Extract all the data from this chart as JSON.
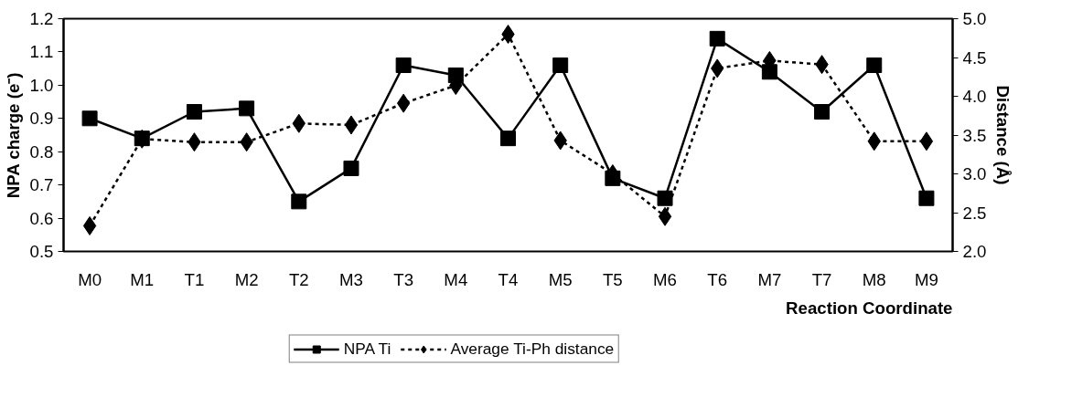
{
  "chart_data": {
    "type": "line",
    "xlabel": "Reaction Coordinate",
    "ylabel": "NPA charge (e⁻)",
    "y2label": "Distance (Å)",
    "categories": [
      "M0",
      "M1",
      "T1",
      "M2",
      "T2",
      "M3",
      "T3",
      "M4",
      "T4",
      "M5",
      "T5",
      "M6",
      "T6",
      "M7",
      "T7",
      "M8",
      "M9"
    ],
    "series": [
      {
        "name": "NPA Ti",
        "color": "#000000",
        "marker": "square",
        "line_style": "solid",
        "values": [
          0.9,
          0.84,
          0.92,
          0.93,
          0.65,
          0.75,
          1.06,
          1.03,
          0.84,
          1.06,
          0.72,
          0.66,
          1.14,
          1.04,
          0.92,
          1.06,
          0.66
        ]
      },
      {
        "name": "Average Ti-Ph distance",
        "color": "#000000",
        "marker": "diamond",
        "line_style": "dashed",
        "axis": "y2",
        "values": [
          2.33,
          3.45,
          3.41,
          3.41,
          3.65,
          3.63,
          3.91,
          4.14,
          4.8,
          3.43,
          3.0,
          2.45,
          4.36,
          4.46,
          4.41,
          3.42,
          3.42
        ]
      }
    ],
    "ylim": [
      0.5,
      1.2
    ],
    "yticks": [
      0.5,
      0.6,
      0.7,
      0.8,
      0.9,
      {
        "value": 1.0,
        "label": "1.0"
      },
      1.1,
      1.2
    ],
    "y2lim": [
      2.0,
      5.0
    ],
    "y2ticks": [
      {
        "value": 2.0,
        "label": "2.0"
      },
      2.5,
      {
        "value": 3.0,
        "label": "3.0"
      },
      3.5,
      {
        "value": 4.0,
        "label": "4.0"
      },
      4.5,
      {
        "value": 5.0,
        "label": "5.0"
      }
    ],
    "grid": false,
    "legend": "bottom"
  }
}
